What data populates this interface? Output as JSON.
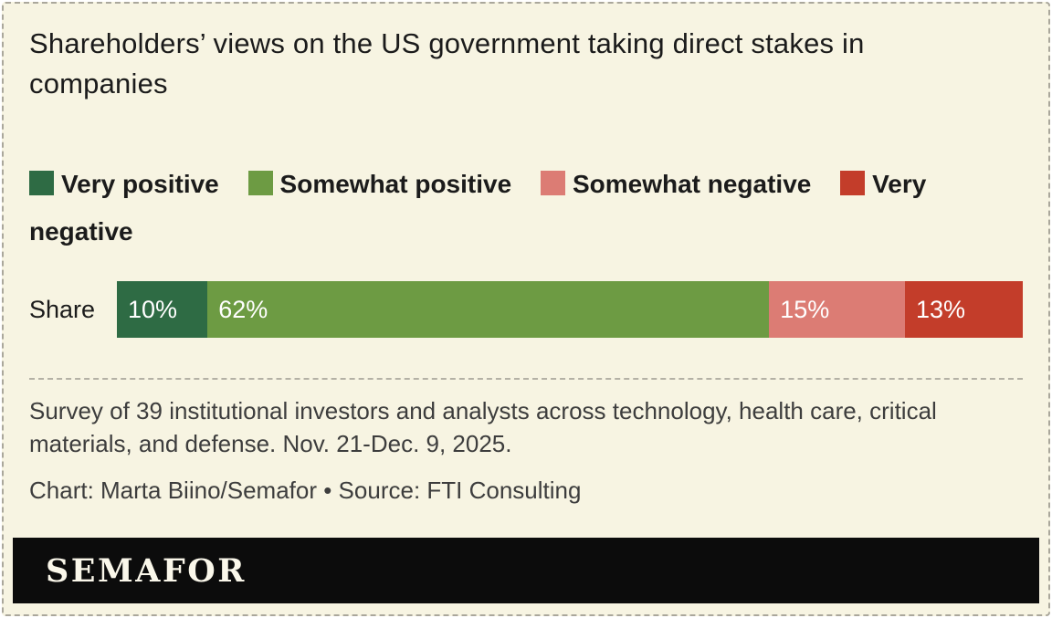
{
  "chart": {
    "title": "Shareholders’ views on the US government taking direct stakes in companies",
    "row_label": "Share",
    "note": "Survey of 39 institutional investors and analysts across technology, health care, critical materials, and defense. Nov. 21-Dec. 9, 2025.",
    "credit": "Chart: Marta Biino/Semafor • Source: FTI Consulting",
    "brand": "SEMAFOR"
  },
  "colors": {
    "background": "#f7f4e2",
    "banner": "#0c0c0c",
    "very_positive": "#2e6b44",
    "somewhat_positive": "#6d9b43",
    "somewhat_negative": "#dc7c74",
    "very_negative": "#c33d2a"
  },
  "chart_data": {
    "type": "bar",
    "orientation": "horizontal-stacked",
    "title": "Shareholders’ views on the US government taking direct stakes in companies",
    "categories": [
      "Share"
    ],
    "series": [
      {
        "name": "Very positive",
        "values": [
          10
        ],
        "color": "#2e6b44"
      },
      {
        "name": "Somewhat positive",
        "values": [
          62
        ],
        "color": "#6d9b43"
      },
      {
        "name": "Somewhat negative",
        "values": [
          15
        ],
        "color": "#dc7c74"
      },
      {
        "name": "Very negative",
        "values": [
          13
        ],
        "color": "#c33d2a"
      }
    ],
    "value_format": "percent",
    "xlim": [
      0,
      100
    ],
    "legend_position": "top",
    "grid": false
  }
}
